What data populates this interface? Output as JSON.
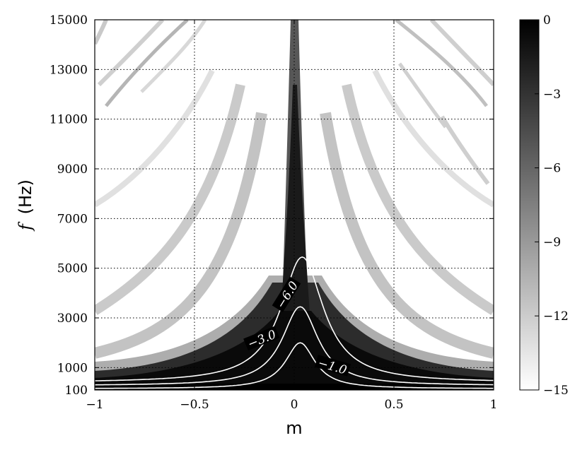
{
  "chart_data": {
    "type": "heatmap",
    "title": "",
    "xlabel": "m",
    "ylabel": "f (Hz)",
    "ylabel_italic": "f",
    "ylabel_unit": "(Hz)",
    "xlim": [
      -1,
      1
    ],
    "ylim": [
      100,
      15000
    ],
    "x_ticks": [
      {
        "value": -1,
        "label": "−1"
      },
      {
        "value": -0.5,
        "label": "−0.5"
      },
      {
        "value": 0,
        "label": "0"
      },
      {
        "value": 0.5,
        "label": "0.5"
      },
      {
        "value": 1,
        "label": "1"
      }
    ],
    "y_ticks": [
      {
        "value": 100,
        "label": "100"
      },
      {
        "value": 1000,
        "label": "1000"
      },
      {
        "value": 3000,
        "label": "3000"
      },
      {
        "value": 5000,
        "label": "5000"
      },
      {
        "value": 7000,
        "label": "7000"
      },
      {
        "value": 9000,
        "label": "9000"
      },
      {
        "value": 11000,
        "label": "11000"
      },
      {
        "value": 13000,
        "label": "13000"
      },
      {
        "value": 15000,
        "label": "15000"
      }
    ],
    "grid": true,
    "colorbar": {
      "range": [
        -15,
        0
      ],
      "ticks": [
        {
          "value": 0,
          "label": "0"
        },
        {
          "value": -3,
          "label": "−3"
        },
        {
          "value": -6,
          "label": "−6"
        },
        {
          "value": -9,
          "label": "−9"
        },
        {
          "value": -12,
          "label": "−12"
        },
        {
          "value": -15,
          "label": "−15"
        }
      ],
      "colormap": "gray (0 = black, −15 = white)"
    },
    "contours": [
      {
        "level": -1.0,
        "label": "−1.0",
        "peak_m": 0.03,
        "peak_f": 2000
      },
      {
        "level": -3.0,
        "label": "−3.0",
        "peak_m": 0.03,
        "peak_f": 3450
      },
      {
        "level": -6.0,
        "label": "−6.0",
        "peak_m": 0.04,
        "peak_f": 5450
      }
    ]
  }
}
